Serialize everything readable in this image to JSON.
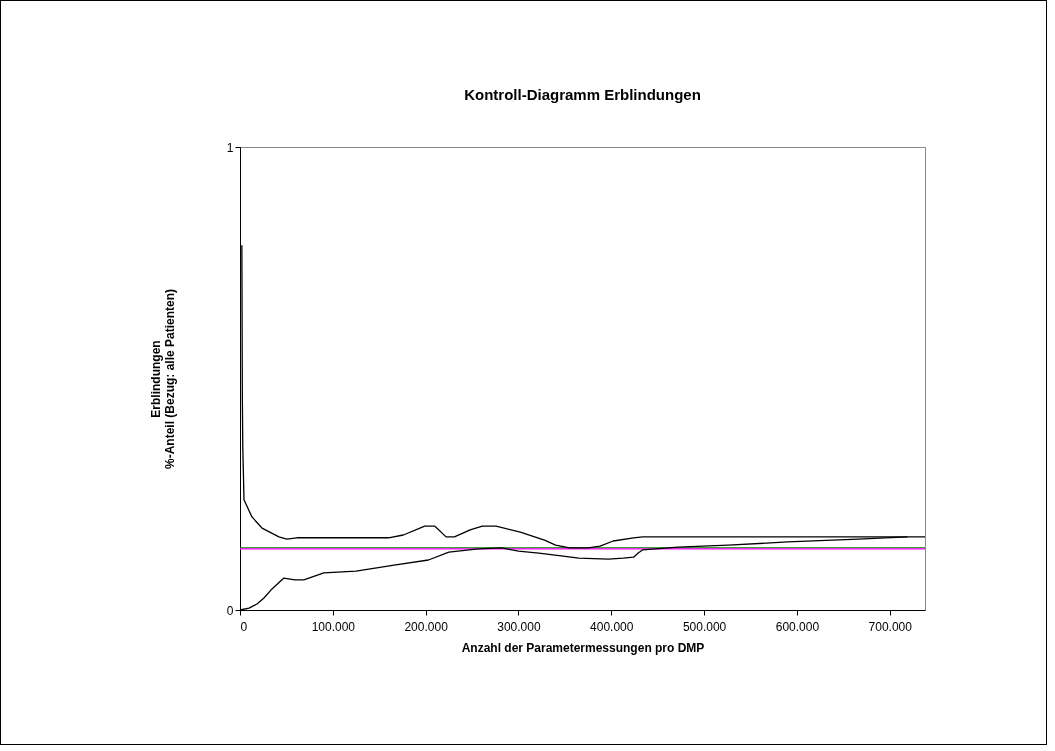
{
  "chart_data": {
    "type": "line",
    "title": "Kontroll-Diagramm Erblindungen",
    "xlabel": "Anzahl der Parametermessungen pro DMP",
    "ylabel": "Erblindungen\n%-Anteil (Bezug: alle Patienten)",
    "xlim": [
      0,
      738000
    ],
    "ylim": [
      0,
      1
    ],
    "xticks": [
      0,
      {
        "value": 100000,
        "label": "100.000"
      },
      {
        "value": 200000,
        "label": "200.000"
      },
      {
        "value": 300000,
        "label": "300.000"
      },
      {
        "value": 400000,
        "label": "400.000"
      },
      {
        "value": 500000,
        "label": "500.000"
      },
      {
        "value": 600000,
        "label": "600.000"
      },
      {
        "value": 700000,
        "label": "700.000"
      }
    ],
    "yticks": [
      0,
      1
    ],
    "grid": false,
    "marker": "none",
    "line_style": "solid",
    "series": [
      {
        "color": "#008000",
        "x": [
          0,
          738000
        ],
        "values": [
          0.134,
          0.134
        ]
      },
      {
        "color": "#ff00ff",
        "x": [
          0,
          738000
        ],
        "values": [
          0.132,
          0.132
        ]
      },
      {
        "color": "#000000",
        "x": [
          2000,
          2500,
          3000,
          4300,
          12900,
          23700,
          41900,
          50500,
          61300,
          160000,
          176000,
          199000,
          210000,
          222000,
          231000,
          248000,
          261000,
          276000,
          302000,
          328000,
          340000,
          355000,
          375000,
          388000,
          402000,
          424000,
          434000,
          738000
        ],
        "values": [
          0.788,
          0.464,
          0.352,
          0.238,
          0.201,
          0.177,
          0.158,
          0.153,
          0.156,
          0.156,
          0.162,
          0.181,
          0.181,
          0.158,
          0.158,
          0.173,
          0.181,
          0.181,
          0.168,
          0.151,
          0.14,
          0.134,
          0.134,
          0.138,
          0.149,
          0.156,
          0.158,
          0.158
        ]
      },
      {
        "color": "#000000",
        "x": [
          0,
          9700,
          18300,
          25800,
          33300,
          47300,
          59100,
          68800,
          90300,
          125000,
          166000,
          203000,
          225000,
          257000,
          282000,
          300000,
          322000,
          346000,
          365000,
          397000,
          413000,
          424000,
          429000,
          434000,
          472000,
          526000,
          590000,
          666000,
          719000
        ],
        "values": [
          0,
          0.004,
          0.013,
          0.026,
          0.043,
          0.069,
          0.065,
          0.065,
          0.08,
          0.084,
          0.097,
          0.108,
          0.125,
          0.132,
          0.134,
          0.127,
          0.123,
          0.117,
          0.112,
          0.11,
          0.112,
          0.114,
          0.123,
          0.13,
          0.136,
          0.14,
          0.147,
          0.153,
          0.158
        ]
      }
    ]
  }
}
